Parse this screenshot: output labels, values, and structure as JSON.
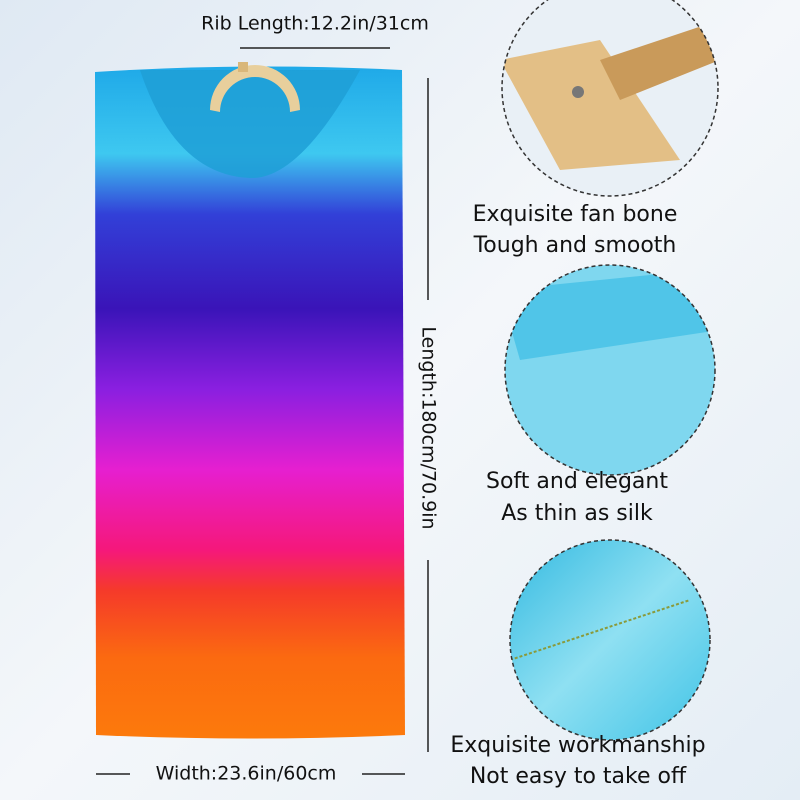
{
  "dimensions": {
    "rib": "Rib Length:12.2in/31cm",
    "length": "Length:180cm/70.9in",
    "width": "Width:23.6in/60cm"
  },
  "features": [
    {
      "line1": "Exquisite fan bone",
      "line2": "Tough and smooth"
    },
    {
      "line1": "Soft and elegant",
      "line2": "As thin as silk"
    },
    {
      "line1": "Exquisite workmanship",
      "line2": "Not easy to take off"
    }
  ]
}
